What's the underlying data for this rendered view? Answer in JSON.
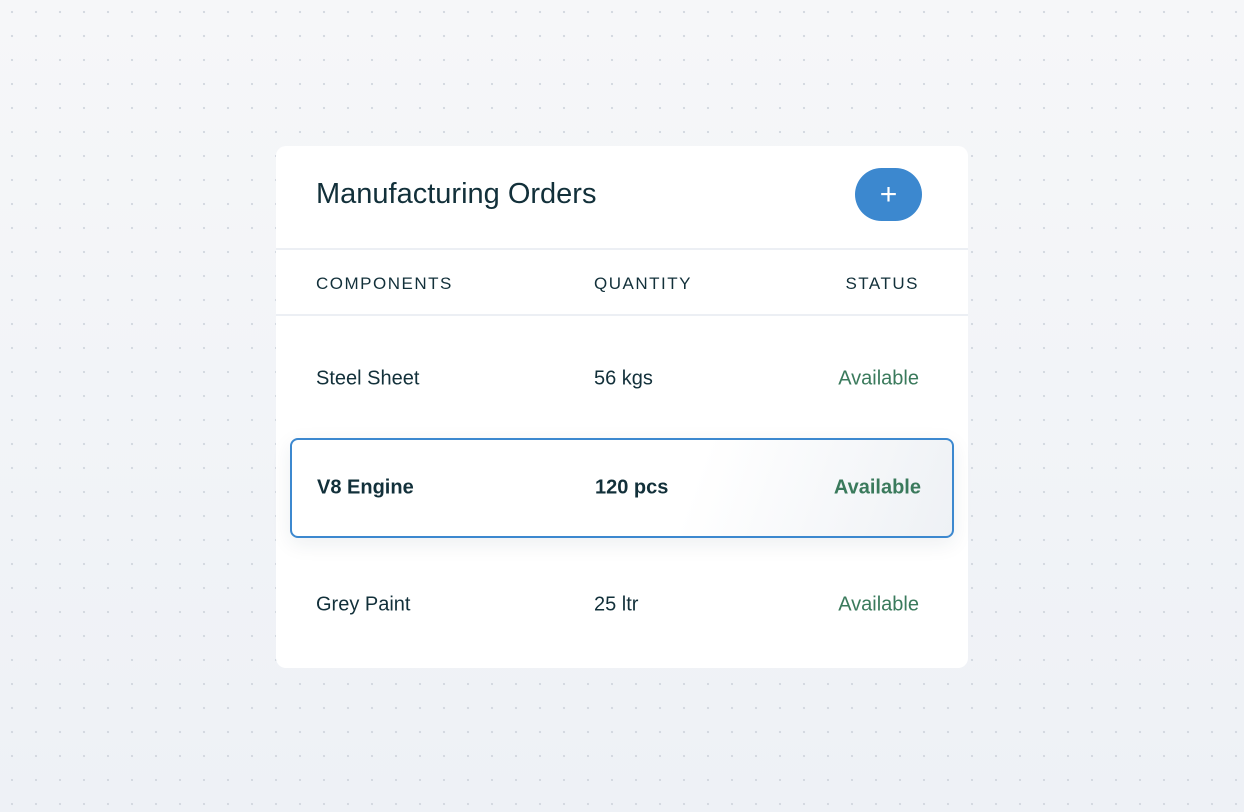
{
  "header": {
    "title": "Manufacturing Orders",
    "add_label": "+",
    "add_icon": "plus-icon"
  },
  "columns": [
    "COMPONENTS",
    "QUANTITY",
    "STATUS"
  ],
  "rows": [
    {
      "component": "Steel Sheet",
      "quantity": "56 kgs",
      "status": "Available"
    },
    {
      "component": "V8 Engine",
      "quantity": "120 pcs",
      "status": "Available",
      "selected": true
    },
    {
      "component": "Grey Paint",
      "quantity": "25 ltr",
      "status": "Available"
    }
  ],
  "colors": {
    "accent": "#3c88cf",
    "status_available": "#3a7a5c",
    "text": "#12303a"
  }
}
